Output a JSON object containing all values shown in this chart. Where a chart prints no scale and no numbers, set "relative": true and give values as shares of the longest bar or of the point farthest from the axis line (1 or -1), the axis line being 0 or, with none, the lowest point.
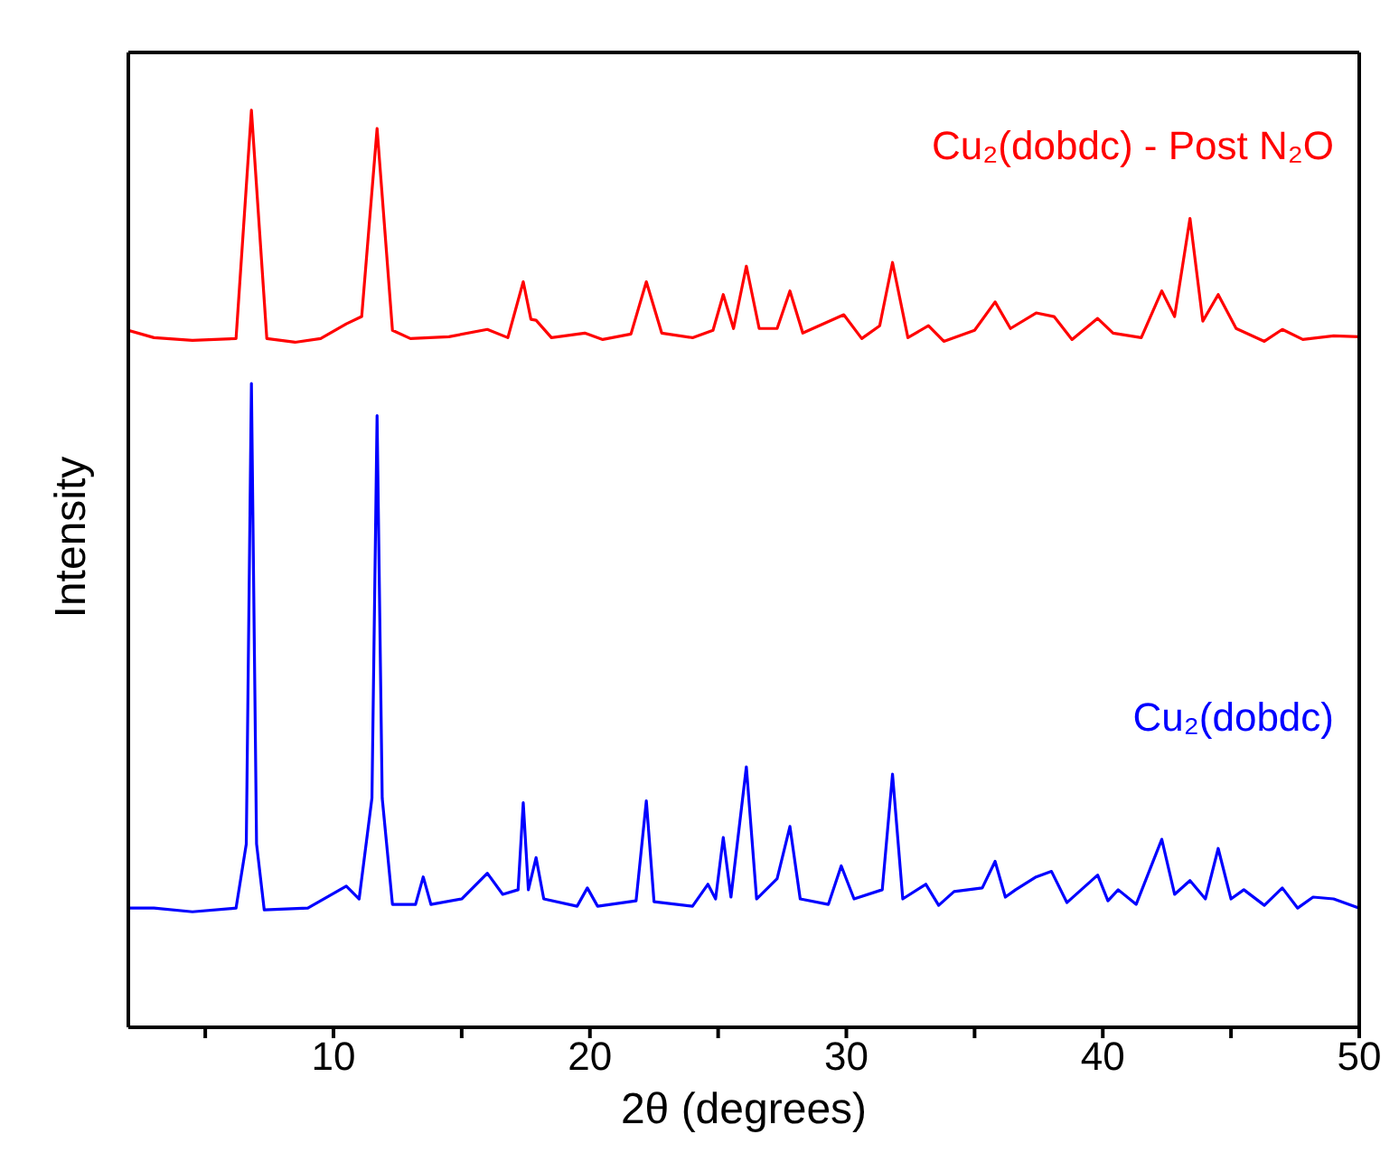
{
  "chart_data": {
    "type": "line",
    "relative": true,
    "xlabel": "2θ (degrees)",
    "ylabel": "Intensity",
    "xlim": [
      2,
      50
    ],
    "xticks": [
      {
        "value": 5,
        "label": null
      },
      10,
      {
        "value": 15,
        "label": null
      },
      20,
      {
        "value": 25,
        "label": null
      },
      30,
      {
        "value": 35,
        "label": null
      },
      40,
      {
        "value": 45,
        "label": null
      },
      50
    ],
    "legend": false,
    "marker": "none",
    "line_style": "solid",
    "series": [
      {
        "name": "Cu₂(dobdc) - Post N₂O",
        "color": "#ff0000",
        "x": [
          2,
          3,
          4.5,
          6.2,
          6.8,
          7.4,
          8.5,
          9.5,
          10.5,
          11.1,
          11.7,
          12.3,
          13,
          14.5,
          16,
          16.8,
          17.4,
          17.7,
          17.9,
          18.5,
          19.8,
          20.5,
          21.6,
          22.2,
          22.8,
          24,
          24.8,
          25.2,
          25.6,
          26.1,
          26.6,
          27.3,
          27.8,
          28.3,
          29.9,
          30.6,
          31.3,
          31.8,
          32.4,
          33.2,
          33.8,
          35,
          35.8,
          36.4,
          37.4,
          38.1,
          38.8,
          39.8,
          40.4,
          41.5,
          42.3,
          42.8,
          43.4,
          43.9,
          44.5,
          45.2,
          46.3,
          47,
          47.8,
          49,
          50
        ],
        "values": [
          0.76,
          0.752,
          0.749,
          0.751,
          1.0,
          0.751,
          0.747,
          0.751,
          0.767,
          0.775,
          0.98,
          0.76,
          0.751,
          0.753,
          0.761,
          0.752,
          0.813,
          0.772,
          0.771,
          0.752,
          0.757,
          0.75,
          0.756,
          0.813,
          0.757,
          0.752,
          0.76,
          0.799,
          0.762,
          0.83,
          0.762,
          0.762,
          0.803,
          0.757,
          0.777,
          0.751,
          0.765,
          0.834,
          0.752,
          0.765,
          0.748,
          0.76,
          0.791,
          0.762,
          0.779,
          0.775,
          0.75,
          0.773,
          0.757,
          0.752,
          0.803,
          0.775,
          0.882,
          0.77,
          0.799,
          0.762,
          0.748,
          0.761,
          0.75,
          0.754,
          0.753
        ]
      },
      {
        "name": "Cu₂(dobdc)",
        "color": "#0000ff",
        "x": [
          2,
          3,
          4.5,
          6.2,
          6.6,
          6.8,
          7.0,
          7.3,
          9,
          10.5,
          11,
          11.5,
          11.7,
          11.9,
          12.3,
          13.2,
          13.5,
          13.8,
          15,
          16,
          16.6,
          17.2,
          17.4,
          17.6,
          17.9,
          18.2,
          19.5,
          19.9,
          20.3,
          21.8,
          22.2,
          22.5,
          24,
          24.6,
          24.9,
          25.2,
          25.5,
          26.1,
          26.5,
          27.3,
          27.8,
          28.2,
          29.3,
          29.8,
          30.3,
          31.4,
          31.8,
          32.2,
          33.1,
          33.6,
          34.2,
          35.3,
          35.8,
          36.2,
          36.6,
          37.4,
          38,
          38.6,
          39.8,
          40.2,
          40.6,
          41.3,
          42.3,
          42.8,
          43.4,
          44,
          44.5,
          45,
          45.5,
          46.3,
          47,
          47.6,
          48.2,
          49,
          50
        ],
        "values": [
          0.13,
          0.13,
          0.126,
          0.13,
          0.2,
          0.702,
          0.2,
          0.128,
          0.13,
          0.154,
          0.14,
          0.25,
          0.667,
          0.25,
          0.134,
          0.134,
          0.164,
          0.134,
          0.14,
          0.168,
          0.145,
          0.15,
          0.245,
          0.15,
          0.185,
          0.14,
          0.132,
          0.152,
          0.132,
          0.138,
          0.247,
          0.137,
          0.132,
          0.156,
          0.14,
          0.207,
          0.142,
          0.284,
          0.14,
          0.162,
          0.219,
          0.14,
          0.134,
          0.176,
          0.14,
          0.15,
          0.276,
          0.14,
          0.156,
          0.133,
          0.148,
          0.152,
          0.181,
          0.142,
          0.15,
          0.164,
          0.17,
          0.136,
          0.166,
          0.138,
          0.15,
          0.134,
          0.205,
          0.145,
          0.16,
          0.14,
          0.195,
          0.14,
          0.15,
          0.133,
          0.152,
          0.13,
          0.142,
          0.14,
          0.13
        ]
      }
    ]
  }
}
